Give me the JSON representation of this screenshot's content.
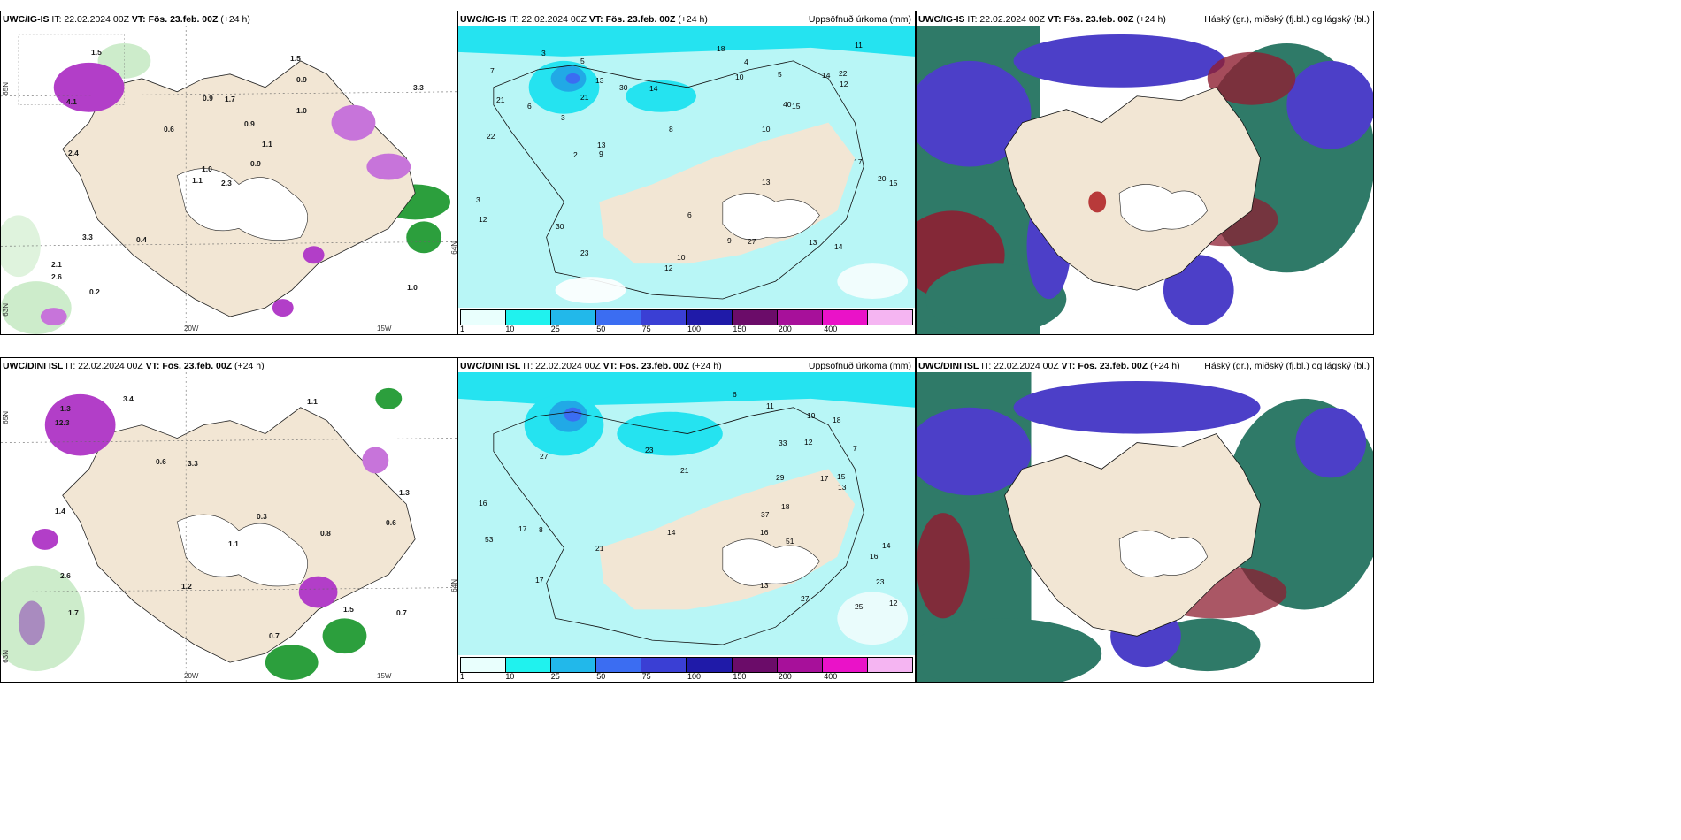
{
  "rows": [
    {
      "model": "UWC/IG-IS",
      "it": "IT: 22.02.2024 00Z",
      "vt_prefix": "VT:",
      "vt": "Fös. 23.feb. 00Z",
      "lead": "(+24 h)",
      "precip_title": "Uppsöfnuð úrkoma (mm)",
      "cloud_title": "Háský (gr.), miðský (fj.bl.) og lágský (bl.)",
      "wind_labels": [
        "2.3",
        "4.1",
        "1.0",
        "2.1",
        "1.1",
        "0.4",
        "1.5",
        "1.7",
        "0.9",
        "0.9",
        "1.5",
        "1.0",
        "2.4",
        "3.3",
        "1.1",
        "1.0",
        "0.2",
        "0.9",
        "0.9",
        "3.3",
        "0.6",
        "2.6"
      ],
      "precip_labels": [
        "21",
        "21",
        "10",
        "10",
        "14",
        "12",
        "13",
        "9",
        "22",
        "15",
        "20",
        "13",
        "40",
        "30",
        "22",
        "23",
        "13",
        "14",
        "14",
        "9",
        "13",
        "17",
        "8",
        "6",
        "5",
        "3",
        "12",
        "4",
        "3",
        "2",
        "3",
        "27",
        "11",
        "6",
        "7",
        "5",
        "30",
        "10",
        "18",
        "12",
        "15"
      ]
    },
    {
      "model": "UWC/DINI ISL",
      "it": "IT: 22.02.2024 00Z",
      "vt_prefix": "VT:",
      "vt": "Fös. 23.feb. 00Z",
      "lead": "(+24 h)",
      "precip_title": "Uppsöfnuð úrkoma (mm)",
      "cloud_title": "Háský (gr.), miðský (fj.bl.) og lágský (bl.)",
      "wind_labels": [
        "0.8",
        "0.6",
        "1.7",
        "3.4",
        "3.3",
        "1.5",
        "2.6",
        "1.1",
        "0.6",
        "0.7",
        "12.3",
        "1.4",
        "1.3",
        "0.7",
        "1.2",
        "1.3",
        "1.1",
        "0.3"
      ],
      "precip_labels": [
        "16",
        "14",
        "17",
        "16",
        "13",
        "12",
        "15",
        "21",
        "23",
        "27",
        "18",
        "37",
        "53",
        "51",
        "21",
        "25",
        "18",
        "17",
        "19",
        "23",
        "14",
        "16",
        "29",
        "11",
        "13",
        "17",
        "27",
        "33",
        "12",
        "8",
        "7",
        "6"
      ]
    }
  ],
  "axis": {
    "lon_labels": [
      "20W",
      "15W"
    ],
    "lat_labels": [
      "65N",
      "64N",
      "63N"
    ]
  },
  "colorbar": {
    "ticks": [
      "1",
      "10",
      "25",
      "50",
      "75",
      "100",
      "150",
      "200",
      "400"
    ],
    "colors": [
      "#e9fffd",
      "#20f2ee",
      "#22b8ea",
      "#3b6df2",
      "#3a3fd4",
      "#1f1aa8",
      "#6b0c69",
      "#a7109a",
      "#ea12c8",
      "#f5b5f2"
    ]
  },
  "colors": {
    "land": "#f2e6d4",
    "precip_light": "#b8f6f6",
    "precip_mid": "#25e3f0",
    "precip_blue": "#21a9e6",
    "wind_green": "#2c9f3d",
    "wind_magenta": "#b23ec8",
    "cloud_blue": "#4c3fc8",
    "cloud_teal": "#2f7a68",
    "cloud_red": "#8e1f32"
  }
}
